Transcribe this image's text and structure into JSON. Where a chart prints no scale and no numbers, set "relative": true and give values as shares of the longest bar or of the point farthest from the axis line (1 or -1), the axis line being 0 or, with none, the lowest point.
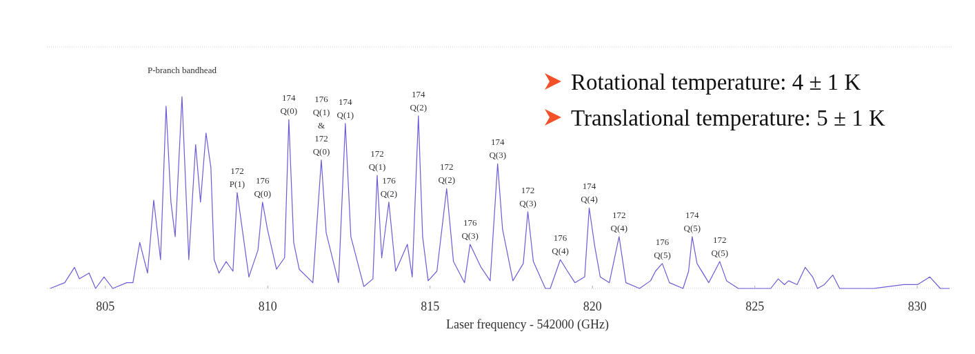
{
  "chart_data": {
    "type": "line",
    "relative": true,
    "xlabel": "Laser frequency - 542000 (GHz)",
    "xlim": [
      803.2,
      831.1
    ],
    "xticks": [
      805,
      810,
      815,
      820,
      825,
      830
    ],
    "tick_labels": "x",
    "grid": false,
    "marker": "none",
    "line_style": "solid",
    "series": [
      {
        "color": "#6b5bd6",
        "x": [
          803.3,
          803.75,
          804.05,
          804.2,
          804.5,
          804.7,
          804.96,
          805.23,
          805.66,
          805.85,
          806.06,
          806.3,
          806.49,
          806.7,
          806.87,
          807.02,
          807.15,
          807.36,
          807.57,
          807.78,
          807.93,
          808.1,
          808.25,
          808.35,
          808.5,
          808.72,
          808.93,
          809.06,
          809.42,
          809.7,
          809.84,
          809.99,
          810.27,
          810.52,
          810.65,
          810.8,
          810.97,
          811.39,
          811.65,
          811.8,
          812.18,
          812.39,
          812.56,
          812.96,
          813.24,
          813.37,
          813.51,
          813.73,
          813.94,
          814.3,
          814.45,
          814.64,
          814.77,
          814.94,
          815.21,
          815.51,
          815.72,
          816.06,
          816.23,
          816.57,
          816.85,
          817.08,
          817.23,
          817.55,
          817.87,
          818.01,
          818.18,
          818.55,
          818.7,
          819.01,
          819.23,
          819.46,
          819.76,
          819.9,
          820.07,
          820.24,
          820.52,
          820.82,
          821.03,
          821.45,
          821.79,
          821.94,
          822.15,
          822.37,
          822.79,
          822.96,
          823.07,
          823.22,
          823.58,
          823.92,
          824.13,
          824.49,
          825.13,
          825.49,
          825.72,
          825.91,
          826.04,
          826.3,
          826.55,
          826.78,
          826.93,
          827.14,
          827.4,
          827.61,
          828.67,
          829.59,
          830.01,
          830.39,
          830.71,
          831.0
        ],
        "values": [
          0,
          0.03,
          0.11,
          0.05,
          0.08,
          0,
          0.06,
          0,
          0.03,
          0.03,
          0.24,
          0.08,
          0.46,
          0.15,
          0.95,
          0.45,
          0.27,
          1.0,
          0.15,
          0.75,
          0.45,
          0.81,
          0.63,
          0.15,
          0.08,
          0.14,
          0.09,
          0.5,
          0.06,
          0.2,
          0.45,
          0.31,
          0.1,
          0.16,
          0.88,
          0.24,
          0.1,
          0.03,
          0.67,
          0.29,
          0.03,
          0.86,
          0.27,
          0.01,
          0.05,
          0.59,
          0.16,
          0.45,
          0.09,
          0.23,
          0.06,
          0.9,
          0.27,
          0.04,
          0.09,
          0.52,
          0.14,
          0.03,
          0.23,
          0.11,
          0.04,
          0.65,
          0.31,
          0.04,
          0.13,
          0.4,
          0.14,
          0,
          0,
          0.15,
          0.09,
          0.03,
          0.06,
          0.42,
          0.22,
          0.06,
          0.03,
          0.27,
          0.03,
          0,
          0.04,
          0.09,
          0.13,
          0.03,
          0,
          0.09,
          0.27,
          0.13,
          0.03,
          0.14,
          0.04,
          0,
          0,
          0,
          0.05,
          0.02,
          0.04,
          0.02,
          0.11,
          0.06,
          0,
          0.02,
          0.07,
          0,
          0,
          0.02,
          0.02,
          0.06,
          0,
          0
        ]
      }
    ],
    "annotations": [
      {
        "text": "P-branch bandhead",
        "x": 807.36,
        "y": 1.0
      },
      {
        "text": "172\nP(1)",
        "x": 809.06,
        "y": 0.5
      },
      {
        "text": "176\nQ(0)",
        "x": 809.84,
        "y": 0.45
      },
      {
        "text": "174\nQ(0)",
        "x": 810.65,
        "y": 0.88
      },
      {
        "text": "176\nQ(1)\n&\n172\nQ(0)",
        "x": 811.65,
        "y": 0.67
      },
      {
        "text": "174\nQ(1)",
        "x": 812.39,
        "y": 0.86
      },
      {
        "text": "172\nQ(1)",
        "x": 813.37,
        "y": 0.59
      },
      {
        "text": "176\nQ(2)",
        "x": 813.73,
        "y": 0.45
      },
      {
        "text": "174\nQ(2)",
        "x": 814.64,
        "y": 0.9
      },
      {
        "text": "172\nQ(2)",
        "x": 815.51,
        "y": 0.52
      },
      {
        "text": "176\nQ(3)",
        "x": 816.23,
        "y": 0.23
      },
      {
        "text": "174\nQ(3)",
        "x": 817.08,
        "y": 0.65
      },
      {
        "text": "172\nQ(3)",
        "x": 818.01,
        "y": 0.4
      },
      {
        "text": "176\nQ(4)",
        "x": 819.01,
        "y": 0.15
      },
      {
        "text": "174\nQ(4)",
        "x": 819.9,
        "y": 0.42
      },
      {
        "text": "172\nQ(4)",
        "x": 820.82,
        "y": 0.27
      },
      {
        "text": "176\nQ(5)",
        "x": 822.15,
        "y": 0.13
      },
      {
        "text": "174\nQ(5)",
        "x": 823.07,
        "y": 0.27
      },
      {
        "text": "172\nQ(5)",
        "x": 823.92,
        "y": 0.14
      },
      "Rotational temperature: 4 ± 1 K",
      "Translational temperature: 5 ± 1 K"
    ]
  }
}
